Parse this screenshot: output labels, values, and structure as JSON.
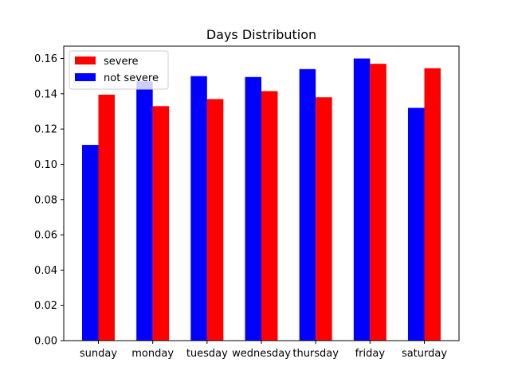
{
  "chart_data": {
    "type": "bar",
    "title": "Days Distribution",
    "xlabel": "",
    "ylabel": "",
    "categories": [
      "sunday",
      "monday",
      "tuesday",
      "wednesday",
      "thursday",
      "friday",
      "saturday"
    ],
    "series": [
      {
        "name": "not severe",
        "color": "#0000ff",
        "values": [
          0.111,
          0.147,
          0.15,
          0.1495,
          0.154,
          0.16,
          0.132
        ]
      },
      {
        "name": "severe",
        "color": "#ff0000",
        "values": [
          0.1395,
          0.133,
          0.137,
          0.1415,
          0.138,
          0.157,
          0.1545
        ]
      }
    ],
    "legend": {
      "position": "top-left",
      "entries": [
        {
          "label": "severe",
          "color": "#ff0000"
        },
        {
          "label": "not severe",
          "color": "#0000ff"
        }
      ]
    },
    "ylim": [
      0,
      0.167
    ],
    "yticks": [
      {
        "value": 0.0,
        "label": "0.00"
      },
      {
        "value": 0.02,
        "label": "0.02"
      },
      {
        "value": 0.04,
        "label": "0.04"
      },
      {
        "value": 0.06,
        "label": "0.06"
      },
      {
        "value": 0.08,
        "label": "0.08"
      },
      {
        "value": 0.1,
        "label": "0.10"
      },
      {
        "value": 0.12,
        "label": "0.12"
      },
      {
        "value": 0.14,
        "label": "0.14"
      },
      {
        "value": 0.16,
        "label": "0.16"
      }
    ],
    "grid": false
  }
}
